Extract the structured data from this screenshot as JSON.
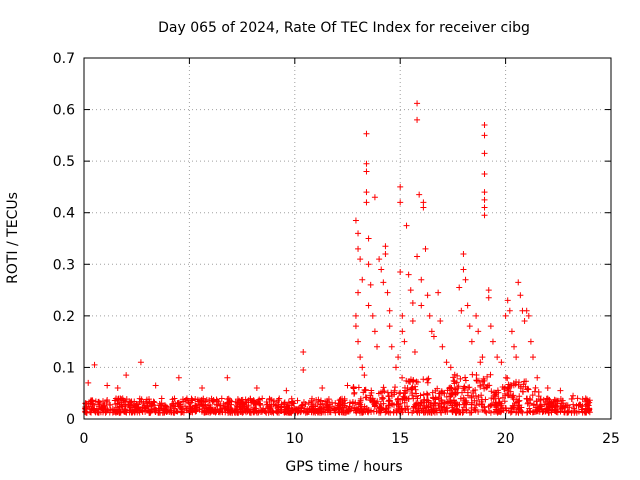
{
  "chart_data": {
    "type": "scatter",
    "title": "Day 065 of 2024, Rate Of TEC Index for receiver cibg",
    "xlabel": "GPS time / hours",
    "ylabel": "ROTI / TECUs",
    "xlim": [
      0,
      25
    ],
    "ylim": [
      0,
      0.7
    ],
    "x_ticks": [
      0,
      5,
      10,
      15,
      20,
      25
    ],
    "x_tick_labels": [
      "0",
      "5",
      "10",
      "15",
      "20",
      "25"
    ],
    "y_ticks": [
      0,
      0.1,
      0.2,
      0.3,
      0.4,
      0.5,
      0.6,
      0.7
    ],
    "y_tick_labels": [
      "0",
      "0.1",
      "0.2",
      "0.3",
      "0.4",
      "0.5",
      "0.6",
      "0.7"
    ],
    "grid": true,
    "marker": "+",
    "marker_color": "#ff0000",
    "series": [
      {
        "name": "ROTI",
        "points": [
          [
            0.2,
            0.07
          ],
          [
            0.5,
            0.105
          ],
          [
            1.1,
            0.065
          ],
          [
            1.6,
            0.06
          ],
          [
            2.0,
            0.085
          ],
          [
            2.7,
            0.11
          ],
          [
            3.4,
            0.065
          ],
          [
            4.5,
            0.08
          ],
          [
            5.6,
            0.06
          ],
          [
            6.8,
            0.08
          ],
          [
            8.2,
            0.06
          ],
          [
            9.6,
            0.055
          ],
          [
            10.4,
            0.13
          ],
          [
            10.4,
            0.095
          ],
          [
            11.3,
            0.06
          ],
          [
            12.5,
            0.065
          ],
          [
            12.9,
            0.385
          ],
          [
            13.0,
            0.36
          ],
          [
            13.0,
            0.33
          ],
          [
            13.1,
            0.31
          ],
          [
            13.2,
            0.27
          ],
          [
            13.0,
            0.245
          ],
          [
            12.9,
            0.2
          ],
          [
            12.9,
            0.18
          ],
          [
            13.0,
            0.15
          ],
          [
            13.1,
            0.12
          ],
          [
            13.2,
            0.1
          ],
          [
            13.3,
            0.085
          ],
          [
            13.4,
            0.553
          ],
          [
            13.4,
            0.495
          ],
          [
            13.4,
            0.48
          ],
          [
            13.4,
            0.44
          ],
          [
            13.4,
            0.42
          ],
          [
            13.5,
            0.35
          ],
          [
            13.5,
            0.3
          ],
          [
            13.6,
            0.26
          ],
          [
            13.5,
            0.22
          ],
          [
            13.7,
            0.2
          ],
          [
            13.8,
            0.17
          ],
          [
            13.9,
            0.14
          ],
          [
            13.8,
            0.43
          ],
          [
            14.0,
            0.31
          ],
          [
            14.1,
            0.29
          ],
          [
            14.2,
            0.265
          ],
          [
            14.3,
            0.335
          ],
          [
            14.3,
            0.32
          ],
          [
            14.4,
            0.245
          ],
          [
            14.5,
            0.21
          ],
          [
            14.5,
            0.18
          ],
          [
            14.6,
            0.14
          ],
          [
            14.8,
            0.1
          ],
          [
            14.9,
            0.12
          ],
          [
            15.0,
            0.45
          ],
          [
            15.0,
            0.42
          ],
          [
            15.0,
            0.285
          ],
          [
            15.1,
            0.2
          ],
          [
            15.1,
            0.17
          ],
          [
            15.2,
            0.15
          ],
          [
            15.3,
            0.375
          ],
          [
            15.4,
            0.28
          ],
          [
            15.5,
            0.25
          ],
          [
            15.6,
            0.225
          ],
          [
            15.6,
            0.19
          ],
          [
            15.7,
            0.13
          ],
          [
            15.8,
            0.612
          ],
          [
            15.8,
            0.58
          ],
          [
            15.9,
            0.435
          ],
          [
            15.8,
            0.315
          ],
          [
            16.0,
            0.27
          ],
          [
            16.0,
            0.22
          ],
          [
            16.1,
            0.42
          ],
          [
            16.1,
            0.41
          ],
          [
            16.2,
            0.33
          ],
          [
            16.3,
            0.24
          ],
          [
            16.4,
            0.2
          ],
          [
            16.5,
            0.17
          ],
          [
            16.6,
            0.16
          ],
          [
            16.8,
            0.245
          ],
          [
            16.9,
            0.19
          ],
          [
            17.0,
            0.14
          ],
          [
            17.2,
            0.11
          ],
          [
            17.4,
            0.1
          ],
          [
            17.8,
            0.255
          ],
          [
            17.9,
            0.21
          ],
          [
            18.0,
            0.32
          ],
          [
            18.0,
            0.29
          ],
          [
            18.1,
            0.27
          ],
          [
            18.2,
            0.22
          ],
          [
            18.3,
            0.18
          ],
          [
            18.4,
            0.15
          ],
          [
            18.6,
            0.2
          ],
          [
            18.7,
            0.17
          ],
          [
            18.8,
            0.11
          ],
          [
            18.9,
            0.12
          ],
          [
            19.0,
            0.57
          ],
          [
            19.0,
            0.55
          ],
          [
            19.0,
            0.515
          ],
          [
            19.0,
            0.475
          ],
          [
            19.0,
            0.44
          ],
          [
            19.0,
            0.425
          ],
          [
            19.0,
            0.41
          ],
          [
            19.0,
            0.395
          ],
          [
            19.2,
            0.25
          ],
          [
            19.2,
            0.235
          ],
          [
            19.3,
            0.18
          ],
          [
            19.4,
            0.15
          ],
          [
            19.6,
            0.12
          ],
          [
            19.8,
            0.11
          ],
          [
            20.0,
            0.2
          ],
          [
            20.1,
            0.23
          ],
          [
            20.2,
            0.21
          ],
          [
            20.3,
            0.17
          ],
          [
            20.4,
            0.14
          ],
          [
            20.5,
            0.12
          ],
          [
            20.6,
            0.265
          ],
          [
            20.7,
            0.24
          ],
          [
            20.8,
            0.21
          ],
          [
            20.9,
            0.19
          ],
          [
            21.0,
            0.21
          ],
          [
            21.1,
            0.2
          ],
          [
            21.2,
            0.15
          ],
          [
            21.3,
            0.12
          ],
          [
            21.5,
            0.08
          ],
          [
            22.0,
            0.06
          ],
          [
            22.6,
            0.055
          ],
          [
            23.2,
            0.045
          ],
          [
            23.8,
            0.04
          ]
        ]
      }
    ]
  }
}
